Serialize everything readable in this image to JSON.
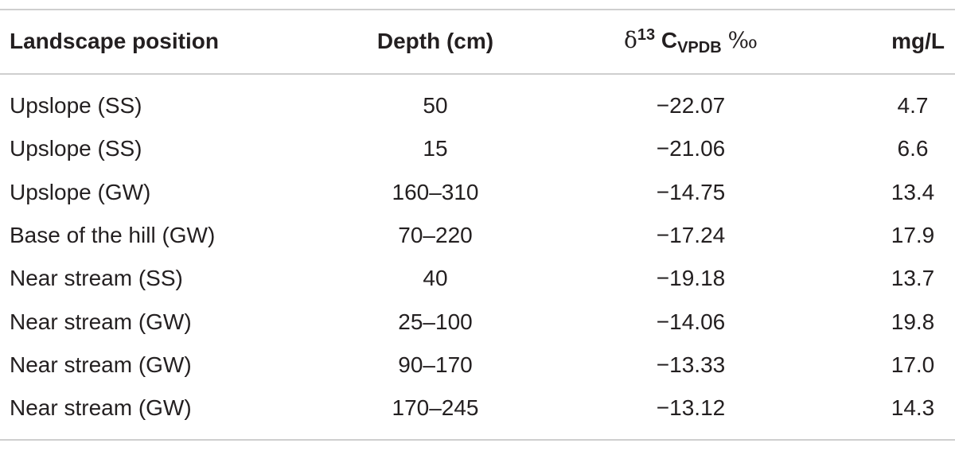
{
  "table": {
    "header": [
      "Landscape position",
      "Depth (cm)",
      {
        "symbol": "δ",
        "sup": "13",
        "base": "C",
        "sub": "VPDB",
        "unit": "‰"
      },
      "mg/L"
    ],
    "rows": [
      [
        "Upslope (SS)",
        "50",
        "−22.07",
        "4.7"
      ],
      [
        "Upslope (SS)",
        "15",
        "−21.06",
        "6.6"
      ],
      [
        "Upslope (GW)",
        "160–310",
        "−14.75",
        "13.4"
      ],
      [
        "Base of the hill (GW)",
        "70–220",
        "−17.24",
        "17.9"
      ],
      [
        "Near stream (SS)",
        "40",
        "−19.18",
        "13.7"
      ],
      [
        "Near stream (GW)",
        "25–100",
        "−14.06",
        "19.8"
      ],
      [
        "Near stream (GW)",
        "90–170",
        "−13.33",
        "17.0"
      ],
      [
        "Near stream (GW)",
        "170–245",
        "−13.12",
        "14.3"
      ]
    ]
  }
}
